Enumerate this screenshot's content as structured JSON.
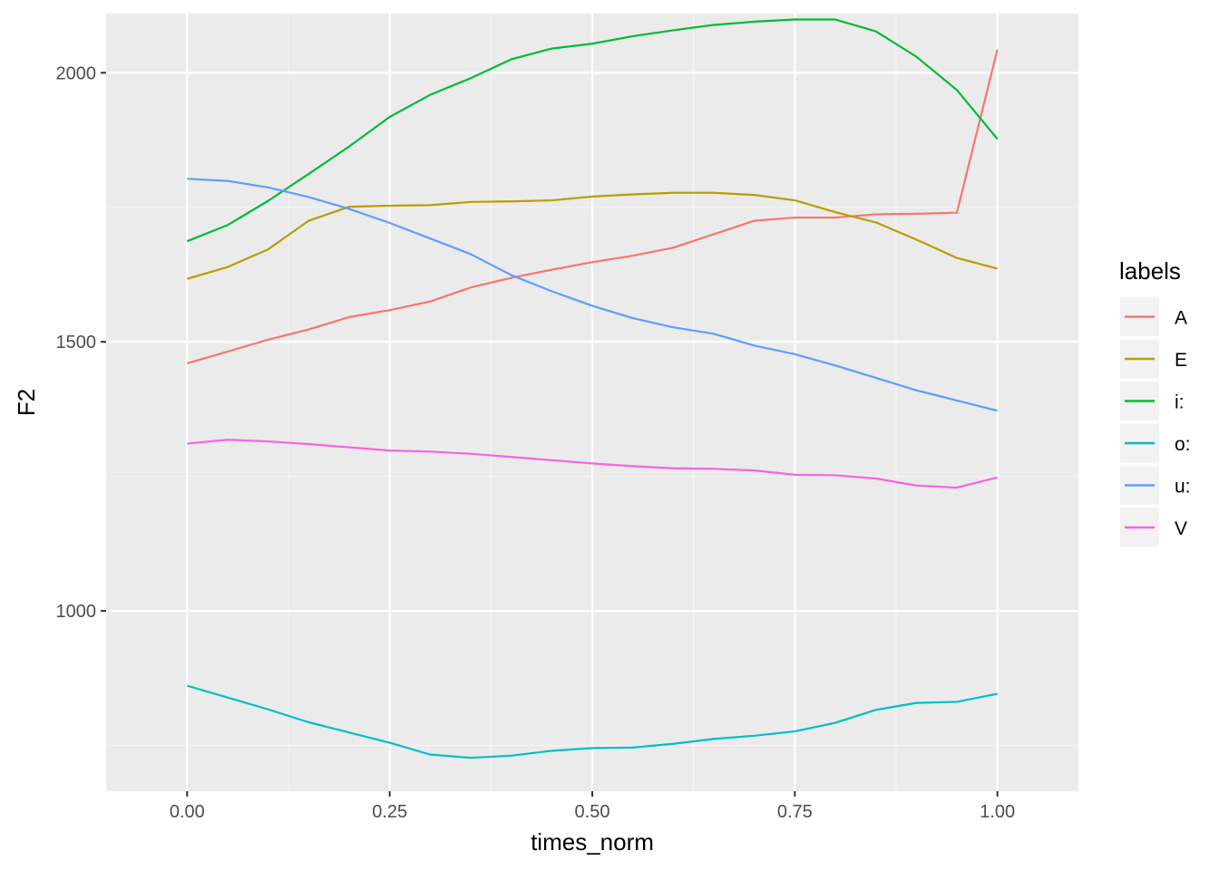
{
  "chart_data": {
    "type": "line",
    "title": "",
    "xlabel": "times_norm",
    "ylabel": "F2",
    "xlim": [
      -0.1,
      1.1
    ],
    "ylim": [
      665,
      2110
    ],
    "x_ticks": [
      0.0,
      0.25,
      0.5,
      0.75,
      1.0
    ],
    "x_tick_labels": [
      "0.00",
      "0.25",
      "0.50",
      "0.75",
      "1.00"
    ],
    "y_ticks": [
      1000,
      1500,
      2000
    ],
    "y_tick_labels": [
      "1000",
      "1500",
      "2000"
    ],
    "grid": true,
    "legend": {
      "title": "labels",
      "position": "right"
    },
    "x": [
      0.0,
      0.05,
      0.1,
      0.15,
      0.2,
      0.25,
      0.3,
      0.35,
      0.4,
      0.45,
      0.5,
      0.55,
      0.6,
      0.65,
      0.7,
      0.75,
      0.8,
      0.85,
      0.9,
      0.95,
      1.0
    ],
    "series": [
      {
        "name": "A",
        "color": "#F8766D",
        "values": [
          1460,
          1482,
          1504,
          1523,
          1546,
          1559,
          1575,
          1601,
          1619,
          1634,
          1648,
          1660,
          1675,
          1700,
          1725,
          1731,
          1731,
          1737,
          1738,
          1740,
          2043
        ]
      },
      {
        "name": "E",
        "color": "#B79F00",
        "values": [
          1617,
          1639,
          1672,
          1725,
          1751,
          1753,
          1754,
          1760,
          1761,
          1763,
          1770,
          1774,
          1777,
          1777,
          1773,
          1763,
          1741,
          1722,
          1690,
          1656,
          1636
        ]
      },
      {
        "name": "i:",
        "color": "#00BA38",
        "values": [
          1687,
          1717,
          1762,
          1812,
          1863,
          1918,
          1959,
          1990,
          2025,
          2045,
          2054,
          2068,
          2079,
          2089,
          2095,
          2099,
          2099,
          2077,
          2030,
          1968,
          1877
        ]
      },
      {
        "name": "o:",
        "color": "#00BFC4",
        "values": [
          861,
          839,
          817,
          793,
          774,
          755,
          733,
          727,
          731,
          740,
          745,
          746,
          753,
          762,
          768,
          776,
          792,
          816,
          829,
          831,
          846
        ]
      },
      {
        "name": "u:",
        "color": "#619CFF",
        "values": [
          1803,
          1799,
          1787,
          1769,
          1747,
          1721,
          1692,
          1663,
          1624,
          1594,
          1567,
          1544,
          1527,
          1515,
          1493,
          1477,
          1456,
          1433,
          1410,
          1391,
          1372
        ]
      },
      {
        "name": "V",
        "color": "#F564E3",
        "values": [
          1311,
          1318,
          1315,
          1310,
          1304,
          1298,
          1296,
          1292,
          1286,
          1280,
          1274,
          1269,
          1265,
          1264,
          1261,
          1253,
          1252,
          1246,
          1233,
          1229,
          1248
        ]
      }
    ]
  },
  "colors": {
    "panel_background": "#EBEBEB",
    "grid_major": "#FFFFFF",
    "grid_minor": "#F5F5F5"
  }
}
